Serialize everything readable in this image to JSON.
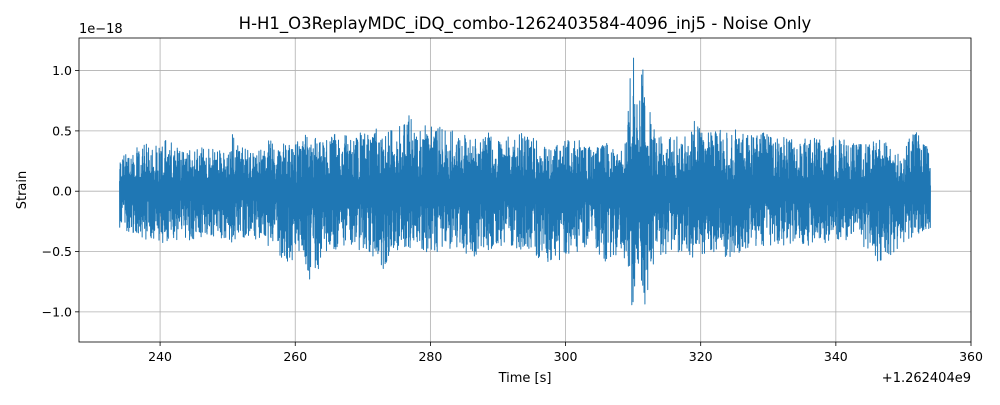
{
  "chart_data": {
    "type": "line",
    "title": "H-H1_O3ReplayMDC_iDQ_combo-1262403584-4096_inj5 - Noise Only",
    "xlabel": "Time [s]",
    "ylabel": "Strain",
    "x_offset_text": "+1.262404e9",
    "y_scale_text": "1e−18",
    "xlim": [
      228,
      360
    ],
    "ylim": [
      -1.25,
      1.27
    ],
    "x_ticks": [
      240,
      260,
      280,
      300,
      320,
      340,
      360
    ],
    "x_tick_labels": [
      "240",
      "260",
      "280",
      "300",
      "320",
      "340",
      "360"
    ],
    "y_ticks": [
      -1.0,
      -0.5,
      0.0,
      0.5,
      1.0
    ],
    "y_tick_labels": [
      "−1.0",
      "−0.5",
      "0.0",
      "0.5",
      "1.0"
    ],
    "grid": true,
    "line_color": "#1f77b4",
    "series": [
      {
        "name": "",
        "x_start": 234.0,
        "x_end": 354.0,
        "envelope_x": [
          234,
          236,
          238,
          240,
          242,
          244,
          246,
          248,
          250,
          251,
          252,
          254,
          256,
          258,
          259,
          260,
          261,
          262,
          263,
          264,
          266,
          268,
          270,
          272,
          273,
          274,
          276,
          277,
          278,
          280,
          282,
          284,
          286,
          288,
          290,
          292,
          294,
          296,
          298,
          300,
          302,
          304,
          306,
          308,
          309,
          309.5,
          310,
          310.5,
          311,
          311.5,
          312,
          313,
          314,
          316,
          318,
          319,
          320,
          322,
          324,
          326,
          328,
          330,
          332,
          334,
          336,
          338,
          340,
          342,
          344,
          346,
          348,
          350,
          352,
          354
        ],
        "envelope_upper": [
          0.3,
          0.35,
          0.4,
          0.42,
          0.42,
          0.35,
          0.38,
          0.36,
          0.32,
          0.53,
          0.38,
          0.33,
          0.42,
          0.4,
          0.38,
          0.38,
          0.5,
          0.45,
          0.5,
          0.42,
          0.5,
          0.45,
          0.5,
          0.52,
          0.45,
          0.5,
          0.55,
          0.67,
          0.55,
          0.6,
          0.5,
          0.5,
          0.45,
          0.5,
          0.45,
          0.45,
          0.52,
          0.4,
          0.35,
          0.43,
          0.42,
          0.35,
          0.4,
          0.3,
          0.42,
          1.0,
          1.15,
          0.9,
          0.88,
          1.12,
          0.8,
          0.55,
          0.45,
          0.45,
          0.45,
          0.68,
          0.48,
          0.5,
          0.52,
          0.5,
          0.45,
          0.5,
          0.45,
          0.42,
          0.45,
          0.42,
          0.45,
          0.42,
          0.45,
          0.45,
          0.38,
          0.35,
          0.55,
          0.3
        ],
        "envelope_lower": [
          -0.3,
          -0.35,
          -0.4,
          -0.42,
          -0.45,
          -0.4,
          -0.42,
          -0.4,
          -0.38,
          -0.45,
          -0.38,
          -0.4,
          -0.45,
          -0.55,
          -0.6,
          -0.6,
          -0.45,
          -0.72,
          -0.78,
          -0.5,
          -0.48,
          -0.45,
          -0.5,
          -0.55,
          -0.67,
          -0.5,
          -0.48,
          -0.5,
          -0.45,
          -0.52,
          -0.48,
          -0.5,
          -0.55,
          -0.5,
          -0.45,
          -0.45,
          -0.5,
          -0.55,
          -0.6,
          -0.55,
          -0.5,
          -0.45,
          -0.6,
          -0.55,
          -0.75,
          -1.0,
          -1.13,
          -0.85,
          -0.75,
          -0.9,
          -1.0,
          -0.6,
          -0.55,
          -0.5,
          -0.55,
          -0.6,
          -0.52,
          -0.5,
          -0.55,
          -0.5,
          -0.45,
          -0.45,
          -0.45,
          -0.42,
          -0.45,
          -0.45,
          -0.4,
          -0.42,
          -0.45,
          -0.58,
          -0.55,
          -0.42,
          -0.4,
          -0.3
        ]
      }
    ]
  }
}
